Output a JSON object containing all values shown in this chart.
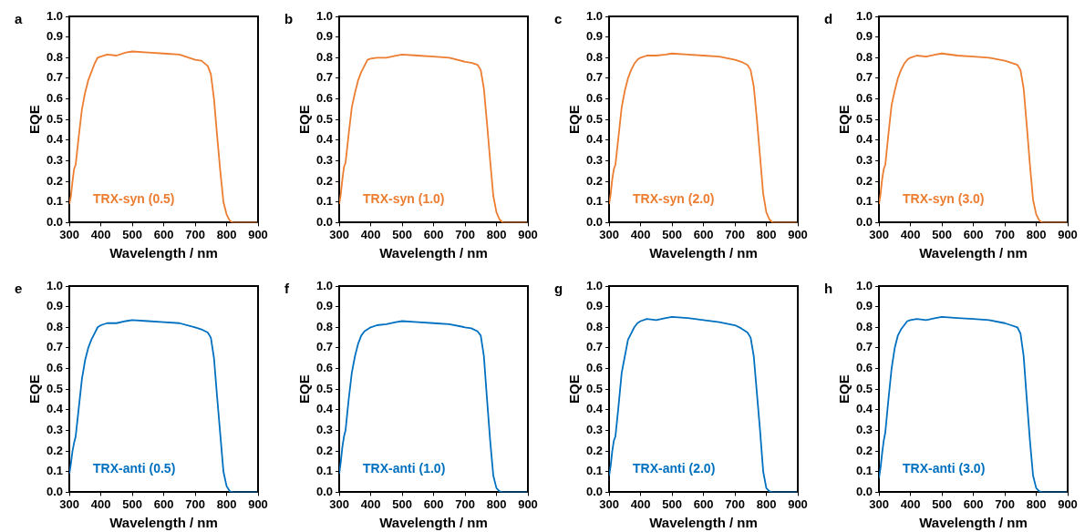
{
  "chart_data": [
    {
      "type": "line",
      "title": "a",
      "xlabel": "Wavelength / nm",
      "ylabel": "EQE",
      "legend": "bottom left",
      "xlim": [
        300,
        900
      ],
      "xticks": [
        300,
        400,
        500,
        600,
        700,
        800,
        900
      ],
      "ylim": [
        0,
        1
      ],
      "yticks": [
        {
          "value": 0,
          "label": "0.0"
        },
        {
          "value": 0.1,
          "label": "0.1"
        },
        {
          "value": 0.2,
          "label": "0.2"
        },
        {
          "value": 0.3,
          "label": "0.3"
        },
        {
          "value": 0.4,
          "label": "0.4"
        },
        {
          "value": 0.5,
          "label": "0.5"
        },
        {
          "value": 0.6,
          "label": "0.6"
        },
        {
          "value": 0.7,
          "label": "0.7"
        },
        {
          "value": 0.8,
          "label": "0.8"
        },
        {
          "value": 0.9,
          "label": "0.9"
        },
        {
          "value": 1,
          "label": "1.0"
        }
      ],
      "x": [
        300,
        305,
        310,
        315,
        320,
        330,
        340,
        350,
        360,
        370,
        380,
        390,
        400,
        420,
        450,
        480,
        500,
        550,
        600,
        650,
        700,
        720,
        740,
        750,
        760,
        770,
        780,
        790,
        800,
        810,
        820,
        900
      ],
      "series": [
        {
          "name": "TRX-syn (0.5)",
          "color": "#ed7d31",
          "values": [
            0.09,
            0.13,
            0.2,
            0.26,
            0.28,
            0.42,
            0.55,
            0.63,
            0.69,
            0.73,
            0.77,
            0.8,
            0.805,
            0.815,
            0.81,
            0.825,
            0.83,
            0.825,
            0.82,
            0.815,
            0.79,
            0.785,
            0.76,
            0.72,
            0.6,
            0.42,
            0.25,
            0.1,
            0.04,
            0.01,
            0,
            0
          ]
        }
      ]
    },
    {
      "type": "line",
      "title": "b",
      "xlabel": "Wavelength / nm",
      "ylabel": "EQE",
      "legend": "bottom left",
      "xlim": [
        300,
        900
      ],
      "xticks": [
        300,
        400,
        500,
        600,
        700,
        800,
        900
      ],
      "ylim": [
        0,
        1
      ],
      "yticks": [
        {
          "value": 0,
          "label": "0.0"
        },
        {
          "value": 0.1,
          "label": "0.1"
        },
        {
          "value": 0.2,
          "label": "0.2"
        },
        {
          "value": 0.3,
          "label": "0.3"
        },
        {
          "value": 0.4,
          "label": "0.4"
        },
        {
          "value": 0.5,
          "label": "0.5"
        },
        {
          "value": 0.6,
          "label": "0.6"
        },
        {
          "value": 0.7,
          "label": "0.7"
        },
        {
          "value": 0.8,
          "label": "0.8"
        },
        {
          "value": 0.9,
          "label": "0.9"
        },
        {
          "value": 1,
          "label": "1.0"
        }
      ],
      "x": [
        300,
        305,
        310,
        315,
        320,
        330,
        340,
        350,
        360,
        370,
        380,
        390,
        400,
        420,
        450,
        480,
        500,
        550,
        600,
        650,
        700,
        720,
        740,
        750,
        760,
        770,
        780,
        790,
        800,
        810,
        820,
        900
      ],
      "series": [
        {
          "name": "TRX-syn (1.0)",
          "color": "#ed7d31",
          "values": [
            0.09,
            0.14,
            0.21,
            0.27,
            0.29,
            0.43,
            0.56,
            0.63,
            0.69,
            0.73,
            0.76,
            0.79,
            0.795,
            0.8,
            0.8,
            0.81,
            0.815,
            0.81,
            0.805,
            0.8,
            0.78,
            0.775,
            0.765,
            0.74,
            0.65,
            0.48,
            0.3,
            0.13,
            0.05,
            0.015,
            0,
            0
          ]
        }
      ]
    },
    {
      "type": "line",
      "title": "c",
      "xlabel": "Wavelength / nm",
      "ylabel": "EQE",
      "legend": "bottom left",
      "xlim": [
        300,
        900
      ],
      "xticks": [
        300,
        400,
        500,
        600,
        700,
        800,
        900
      ],
      "ylim": [
        0,
        1
      ],
      "yticks": [
        {
          "value": 0,
          "label": "0.0"
        },
        {
          "value": 0.1,
          "label": "0.1"
        },
        {
          "value": 0.2,
          "label": "0.2"
        },
        {
          "value": 0.3,
          "label": "0.3"
        },
        {
          "value": 0.4,
          "label": "0.4"
        },
        {
          "value": 0.5,
          "label": "0.5"
        },
        {
          "value": 0.6,
          "label": "0.6"
        },
        {
          "value": 0.7,
          "label": "0.7"
        },
        {
          "value": 0.8,
          "label": "0.8"
        },
        {
          "value": 0.9,
          "label": "0.9"
        },
        {
          "value": 1,
          "label": "1.0"
        }
      ],
      "x": [
        300,
        305,
        310,
        315,
        320,
        330,
        340,
        350,
        360,
        370,
        380,
        390,
        400,
        420,
        450,
        480,
        500,
        550,
        600,
        650,
        700,
        720,
        740,
        750,
        760,
        770,
        780,
        790,
        800,
        810,
        820,
        900
      ],
      "series": [
        {
          "name": "TRX-syn (2.0)",
          "color": "#ed7d31",
          "values": [
            0.09,
            0.14,
            0.21,
            0.26,
            0.28,
            0.42,
            0.56,
            0.64,
            0.7,
            0.74,
            0.77,
            0.79,
            0.8,
            0.81,
            0.81,
            0.815,
            0.82,
            0.815,
            0.81,
            0.805,
            0.79,
            0.78,
            0.765,
            0.74,
            0.66,
            0.5,
            0.32,
            0.14,
            0.05,
            0.015,
            0,
            0
          ]
        }
      ]
    },
    {
      "type": "line",
      "title": "d",
      "xlabel": "Wavelength / nm",
      "ylabel": "EQE",
      "legend": "bottom left",
      "xlim": [
        300,
        900
      ],
      "xticks": [
        300,
        400,
        500,
        600,
        700,
        800,
        900
      ],
      "ylim": [
        0,
        1
      ],
      "yticks": [
        {
          "value": 0,
          "label": "0.0"
        },
        {
          "value": 0.1,
          "label": "0.1"
        },
        {
          "value": 0.2,
          "label": "0.2"
        },
        {
          "value": 0.3,
          "label": "0.3"
        },
        {
          "value": 0.4,
          "label": "0.4"
        },
        {
          "value": 0.5,
          "label": "0.5"
        },
        {
          "value": 0.6,
          "label": "0.6"
        },
        {
          "value": 0.7,
          "label": "0.7"
        },
        {
          "value": 0.8,
          "label": "0.8"
        },
        {
          "value": 0.9,
          "label": "0.9"
        },
        {
          "value": 1,
          "label": "1.0"
        }
      ],
      "x": [
        300,
        305,
        310,
        315,
        320,
        330,
        340,
        350,
        360,
        370,
        380,
        390,
        400,
        420,
        450,
        480,
        500,
        550,
        600,
        650,
        700,
        720,
        740,
        750,
        760,
        770,
        780,
        790,
        800,
        810,
        820,
        900
      ],
      "series": [
        {
          "name": "TRX-syn (3.0)",
          "color": "#ed7d31",
          "values": [
            0.09,
            0.14,
            0.21,
            0.26,
            0.28,
            0.43,
            0.57,
            0.64,
            0.7,
            0.74,
            0.77,
            0.79,
            0.8,
            0.81,
            0.805,
            0.815,
            0.82,
            0.81,
            0.805,
            0.8,
            0.785,
            0.775,
            0.765,
            0.74,
            0.65,
            0.47,
            0.28,
            0.11,
            0.04,
            0.01,
            0,
            0
          ]
        }
      ]
    },
    {
      "type": "line",
      "title": "e",
      "xlabel": "Wavelength / nm",
      "ylabel": "EQE",
      "legend": "bottom left",
      "xlim": [
        300,
        900
      ],
      "xticks": [
        300,
        400,
        500,
        600,
        700,
        800,
        900
      ],
      "ylim": [
        0,
        1
      ],
      "yticks": [
        {
          "value": 0,
          "label": "0.0"
        },
        {
          "value": 0.1,
          "label": "0.1"
        },
        {
          "value": 0.2,
          "label": "0.2"
        },
        {
          "value": 0.3,
          "label": "0.3"
        },
        {
          "value": 0.4,
          "label": "0.4"
        },
        {
          "value": 0.5,
          "label": "0.5"
        },
        {
          "value": 0.6,
          "label": "0.6"
        },
        {
          "value": 0.7,
          "label": "0.7"
        },
        {
          "value": 0.8,
          "label": "0.8"
        },
        {
          "value": 0.9,
          "label": "0.9"
        },
        {
          "value": 1,
          "label": "1.0"
        }
      ],
      "x": [
        300,
        305,
        310,
        315,
        320,
        330,
        340,
        350,
        360,
        370,
        380,
        390,
        400,
        420,
        450,
        480,
        500,
        550,
        600,
        650,
        700,
        720,
        740,
        750,
        760,
        770,
        780,
        790,
        800,
        810,
        820,
        900
      ],
      "series": [
        {
          "name": "TRX-anti (0.5)",
          "color": "#0070c0",
          "values": [
            0.09,
            0.14,
            0.2,
            0.24,
            0.27,
            0.41,
            0.55,
            0.64,
            0.7,
            0.74,
            0.77,
            0.8,
            0.81,
            0.82,
            0.82,
            0.83,
            0.835,
            0.83,
            0.825,
            0.82,
            0.8,
            0.79,
            0.775,
            0.75,
            0.65,
            0.46,
            0.28,
            0.1,
            0.03,
            0.005,
            0,
            0
          ]
        }
      ]
    },
    {
      "type": "line",
      "title": "f",
      "xlabel": "Wavelength / nm",
      "ylabel": "EQE",
      "legend": "bottom left",
      "xlim": [
        300,
        900
      ],
      "xticks": [
        300,
        400,
        500,
        600,
        700,
        800,
        900
      ],
      "ylim": [
        0,
        1
      ],
      "yticks": [
        {
          "value": 0,
          "label": "0.0"
        },
        {
          "value": 0.1,
          "label": "0.1"
        },
        {
          "value": 0.2,
          "label": "0.2"
        },
        {
          "value": 0.3,
          "label": "0.3"
        },
        {
          "value": 0.4,
          "label": "0.4"
        },
        {
          "value": 0.5,
          "label": "0.5"
        },
        {
          "value": 0.6,
          "label": "0.6"
        },
        {
          "value": 0.7,
          "label": "0.7"
        },
        {
          "value": 0.8,
          "label": "0.8"
        },
        {
          "value": 0.9,
          "label": "0.9"
        },
        {
          "value": 1,
          "label": "1.0"
        }
      ],
      "x": [
        300,
        305,
        310,
        315,
        320,
        330,
        340,
        350,
        360,
        370,
        380,
        390,
        400,
        420,
        450,
        480,
        500,
        550,
        600,
        650,
        700,
        720,
        740,
        750,
        760,
        770,
        780,
        790,
        800,
        810,
        820,
        900
      ],
      "series": [
        {
          "name": "TRX-anti (1.0)",
          "color": "#0070c0",
          "values": [
            0.09,
            0.15,
            0.22,
            0.27,
            0.3,
            0.45,
            0.58,
            0.66,
            0.72,
            0.76,
            0.78,
            0.79,
            0.8,
            0.81,
            0.815,
            0.825,
            0.83,
            0.825,
            0.82,
            0.815,
            0.8,
            0.795,
            0.78,
            0.76,
            0.66,
            0.45,
            0.25,
            0.08,
            0.02,
            0.005,
            0,
            0
          ]
        }
      ]
    },
    {
      "type": "line",
      "title": "g",
      "xlabel": "Wavelength / nm",
      "ylabel": "EQE",
      "legend": "bottom left",
      "xlim": [
        300,
        900
      ],
      "xticks": [
        300,
        400,
        500,
        600,
        700,
        800,
        900
      ],
      "ylim": [
        0,
        1
      ],
      "yticks": [
        {
          "value": 0,
          "label": "0.0"
        },
        {
          "value": 0.1,
          "label": "0.1"
        },
        {
          "value": 0.2,
          "label": "0.2"
        },
        {
          "value": 0.3,
          "label": "0.3"
        },
        {
          "value": 0.4,
          "label": "0.4"
        },
        {
          "value": 0.5,
          "label": "0.5"
        },
        {
          "value": 0.6,
          "label": "0.6"
        },
        {
          "value": 0.7,
          "label": "0.7"
        },
        {
          "value": 0.8,
          "label": "0.8"
        },
        {
          "value": 0.9,
          "label": "0.9"
        },
        {
          "value": 1,
          "label": "1.0"
        }
      ],
      "x": [
        300,
        305,
        310,
        315,
        320,
        330,
        340,
        350,
        360,
        370,
        380,
        390,
        400,
        420,
        450,
        480,
        500,
        550,
        600,
        650,
        700,
        720,
        740,
        750,
        760,
        770,
        780,
        790,
        800,
        810,
        820,
        900
      ],
      "series": [
        {
          "name": "TRX-anti (2.0)",
          "color": "#0070c0",
          "values": [
            0.08,
            0.13,
            0.2,
            0.25,
            0.27,
            0.42,
            0.58,
            0.66,
            0.74,
            0.77,
            0.8,
            0.82,
            0.83,
            0.84,
            0.835,
            0.845,
            0.85,
            0.845,
            0.835,
            0.825,
            0.81,
            0.795,
            0.775,
            0.75,
            0.66,
            0.48,
            0.3,
            0.1,
            0.02,
            0.005,
            0,
            0
          ]
        }
      ]
    },
    {
      "type": "line",
      "title": "h",
      "xlabel": "Wavelength / nm",
      "ylabel": "EQE",
      "legend": "bottom left",
      "xlim": [
        300,
        900
      ],
      "xticks": [
        300,
        400,
        500,
        600,
        700,
        800,
        900
      ],
      "ylim": [
        0,
        1
      ],
      "yticks": [
        {
          "value": 0,
          "label": "0.0"
        },
        {
          "value": 0.1,
          "label": "0.1"
        },
        {
          "value": 0.2,
          "label": "0.2"
        },
        {
          "value": 0.3,
          "label": "0.3"
        },
        {
          "value": 0.4,
          "label": "0.4"
        },
        {
          "value": 0.5,
          "label": "0.5"
        },
        {
          "value": 0.6,
          "label": "0.6"
        },
        {
          "value": 0.7,
          "label": "0.7"
        },
        {
          "value": 0.8,
          "label": "0.8"
        },
        {
          "value": 0.9,
          "label": "0.9"
        },
        {
          "value": 1,
          "label": "1.0"
        }
      ],
      "x": [
        300,
        305,
        310,
        315,
        320,
        330,
        340,
        350,
        360,
        370,
        380,
        390,
        400,
        420,
        450,
        480,
        500,
        550,
        600,
        650,
        700,
        720,
        740,
        750,
        760,
        770,
        780,
        790,
        800,
        810,
        820,
        900
      ],
      "series": [
        {
          "name": "TRX-anti (3.0)",
          "color": "#0070c0",
          "values": [
            0.07,
            0.12,
            0.19,
            0.25,
            0.29,
            0.45,
            0.6,
            0.7,
            0.76,
            0.79,
            0.81,
            0.83,
            0.835,
            0.84,
            0.835,
            0.845,
            0.85,
            0.845,
            0.84,
            0.835,
            0.82,
            0.81,
            0.8,
            0.77,
            0.66,
            0.45,
            0.25,
            0.08,
            0.02,
            0.005,
            0,
            0
          ]
        }
      ]
    }
  ]
}
